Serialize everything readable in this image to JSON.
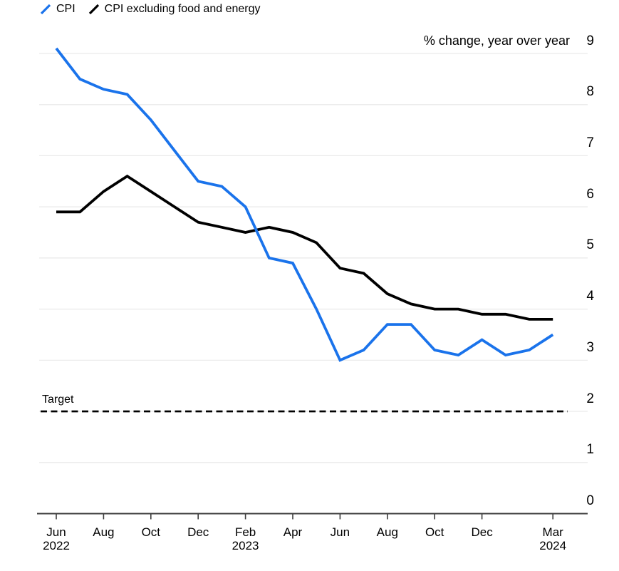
{
  "legend": {
    "items": [
      {
        "label": "CPI",
        "color": "#1a73eb"
      },
      {
        "label": "CPI excluding food and energy",
        "color": "#000000"
      }
    ]
  },
  "header": {
    "unit_label": "% change, year over year"
  },
  "chart_data": {
    "type": "line",
    "title": "",
    "unit_label": "% change, year over year",
    "grid": "horizontal",
    "legend_position": "top-left",
    "ylim": [
      0,
      9
    ],
    "y_ticks": [
      0,
      1,
      2,
      3,
      4,
      5,
      6,
      7,
      8,
      9
    ],
    "x": [
      "Jun 2022",
      "Jul 2022",
      "Aug 2022",
      "Sep 2022",
      "Oct 2022",
      "Nov 2022",
      "Dec 2022",
      "Jan 2023",
      "Feb 2023",
      "Mar 2023",
      "Apr 2023",
      "May 2023",
      "Jun 2023",
      "Jul 2023",
      "Aug 2023",
      "Sep 2023",
      "Oct 2023",
      "Nov 2023",
      "Dec 2023",
      "Jan 2024",
      "Feb 2024",
      "Mar 2024"
    ],
    "x_tick_labels": [
      {
        "index": 0,
        "label": "Jun",
        "year": "2022"
      },
      {
        "index": 2,
        "label": "Aug"
      },
      {
        "index": 4,
        "label": "Oct"
      },
      {
        "index": 6,
        "label": "Dec"
      },
      {
        "index": 8,
        "label": "Feb",
        "year": "2023"
      },
      {
        "index": 10,
        "label": "Apr"
      },
      {
        "index": 12,
        "label": "Jun"
      },
      {
        "index": 14,
        "label": "Aug"
      },
      {
        "index": 16,
        "label": "Oct"
      },
      {
        "index": 18,
        "label": "Dec"
      },
      {
        "index": 21,
        "label": "Mar",
        "year": "2024"
      }
    ],
    "series": [
      {
        "name": "CPI",
        "color": "#1a73eb",
        "values": [
          9.1,
          8.5,
          8.3,
          8.2,
          7.7,
          7.1,
          6.5,
          6.4,
          6.0,
          5.0,
          4.9,
          4.0,
          3.0,
          3.2,
          3.7,
          3.7,
          3.2,
          3.1,
          3.4,
          3.1,
          3.2,
          3.5
        ]
      },
      {
        "name": "CPI excluding food and energy",
        "color": "#000000",
        "values": [
          5.9,
          5.9,
          6.3,
          6.6,
          6.3,
          6.0,
          5.7,
          5.6,
          5.5,
          5.6,
          5.5,
          5.3,
          4.8,
          4.7,
          4.3,
          4.1,
          4.0,
          4.0,
          3.9,
          3.9,
          3.8,
          3.8
        ]
      }
    ],
    "reference_line": {
      "label": "Target",
      "value": 2,
      "style": "dashed",
      "color": "#000000"
    }
  },
  "colors": {
    "grid": "#e9e9e9",
    "axis": "#3c3c3c",
    "text": "#000000",
    "cpi_blue": "#1a73eb"
  }
}
